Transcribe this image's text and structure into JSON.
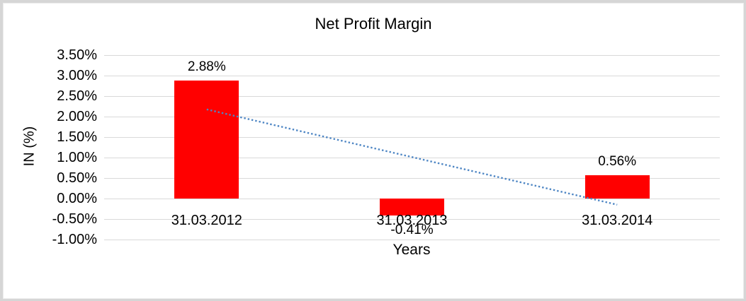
{
  "window": {
    "frame_color": "#d6d6d6",
    "background": "#ffffff"
  },
  "chart_data": {
    "type": "bar",
    "title": "Net Profit Margin",
    "xlabel": "Years",
    "ylabel": "IN (%)",
    "categories": [
      "31.03.2012",
      "31.03.2013",
      "31.03.2014"
    ],
    "values": [
      2.88,
      -0.41,
      0.56
    ],
    "data_labels": [
      "2.88%",
      "-0.41%",
      "0.56%"
    ],
    "y_ticks": [
      "3.50%",
      "3.00%",
      "2.50%",
      "2.00%",
      "1.50%",
      "1.00%",
      "0.50%",
      "0.00%",
      "-0.50%",
      "-1.00%"
    ],
    "y_tick_values": [
      3.5,
      3.0,
      2.5,
      2.0,
      1.5,
      1.0,
      0.5,
      0.0,
      -0.5,
      -1.0
    ],
    "ylim": [
      -1.0,
      3.5
    ],
    "grid": true,
    "legend": false,
    "bar_color": "#ff0000",
    "gridline_color": "#d9d9d9",
    "text_color": "#000000",
    "trendline": {
      "type": "linear",
      "style": "dotted",
      "color": "#4e86c4"
    }
  }
}
